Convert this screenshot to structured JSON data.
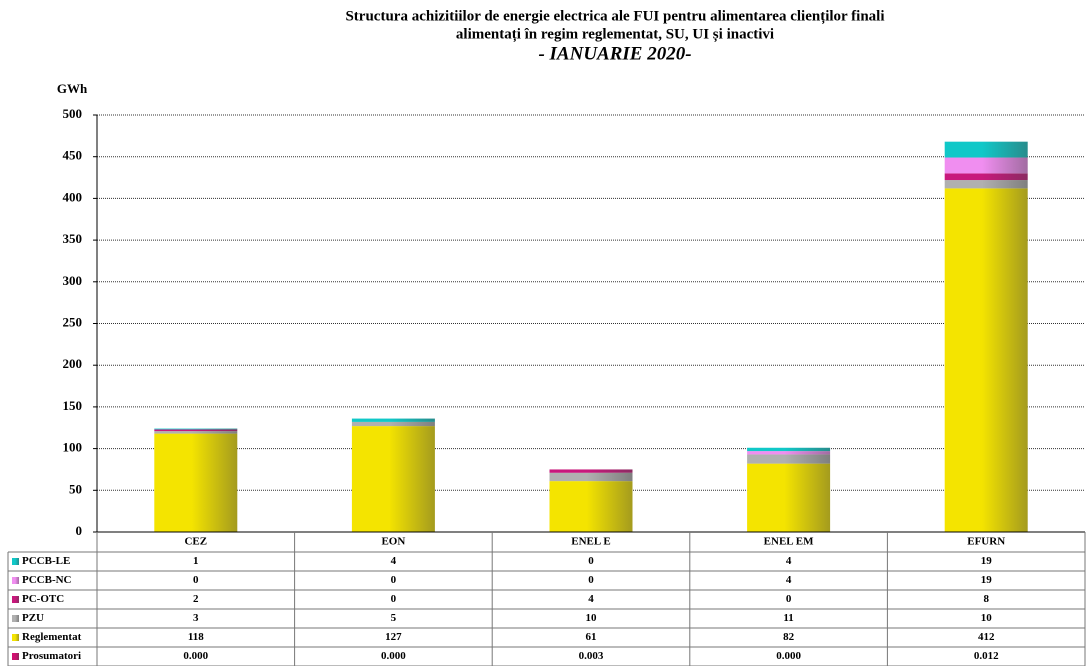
{
  "chart_data": {
    "type": "stacked_bar",
    "title": [
      "Structura achizitiilor de energie electrica ale FUI pentru alimentarea clienților finali",
      "alimentați în regim reglementat, SU, UI și inactivi"
    ],
    "subtitle": "- IANUARIE 2020-",
    "y_label": "GWh",
    "categories": [
      "CEZ",
      "EON",
      "ENEL E",
      "ENEL EM",
      "EFURN"
    ],
    "series": [
      {
        "name": "PCCB-LE",
        "color": "#10c8c8",
        "values": [
          1,
          4,
          0,
          4,
          19
        ]
      },
      {
        "name": "PCCB-NC",
        "color": "#f08ef0",
        "values": [
          0,
          0,
          0,
          4,
          19
        ]
      },
      {
        "name": "PC-OTC",
        "color": "#c8187c",
        "values": [
          2,
          0,
          4,
          0,
          8
        ]
      },
      {
        "name": "PZU",
        "color": "#b0b0b0",
        "values": [
          3,
          5,
          10,
          11,
          10
        ]
      },
      {
        "name": "Reglementat",
        "color": "#f4e400",
        "values": [
          118,
          127,
          61,
          82,
          412
        ]
      },
      {
        "name": "Prosumatori",
        "color": "#d01070",
        "values": [
          0,
          0,
          0.003,
          0,
          0.012
        ],
        "value_labels": [
          "0.000",
          "0.000",
          "0.003",
          "0.000",
          "0.012"
        ]
      }
    ],
    "ylim": [
      0,
      500
    ],
    "yticks": [
      0,
      50,
      100,
      150,
      200,
      250,
      300,
      350,
      400,
      450,
      500
    ],
    "grid": true
  }
}
